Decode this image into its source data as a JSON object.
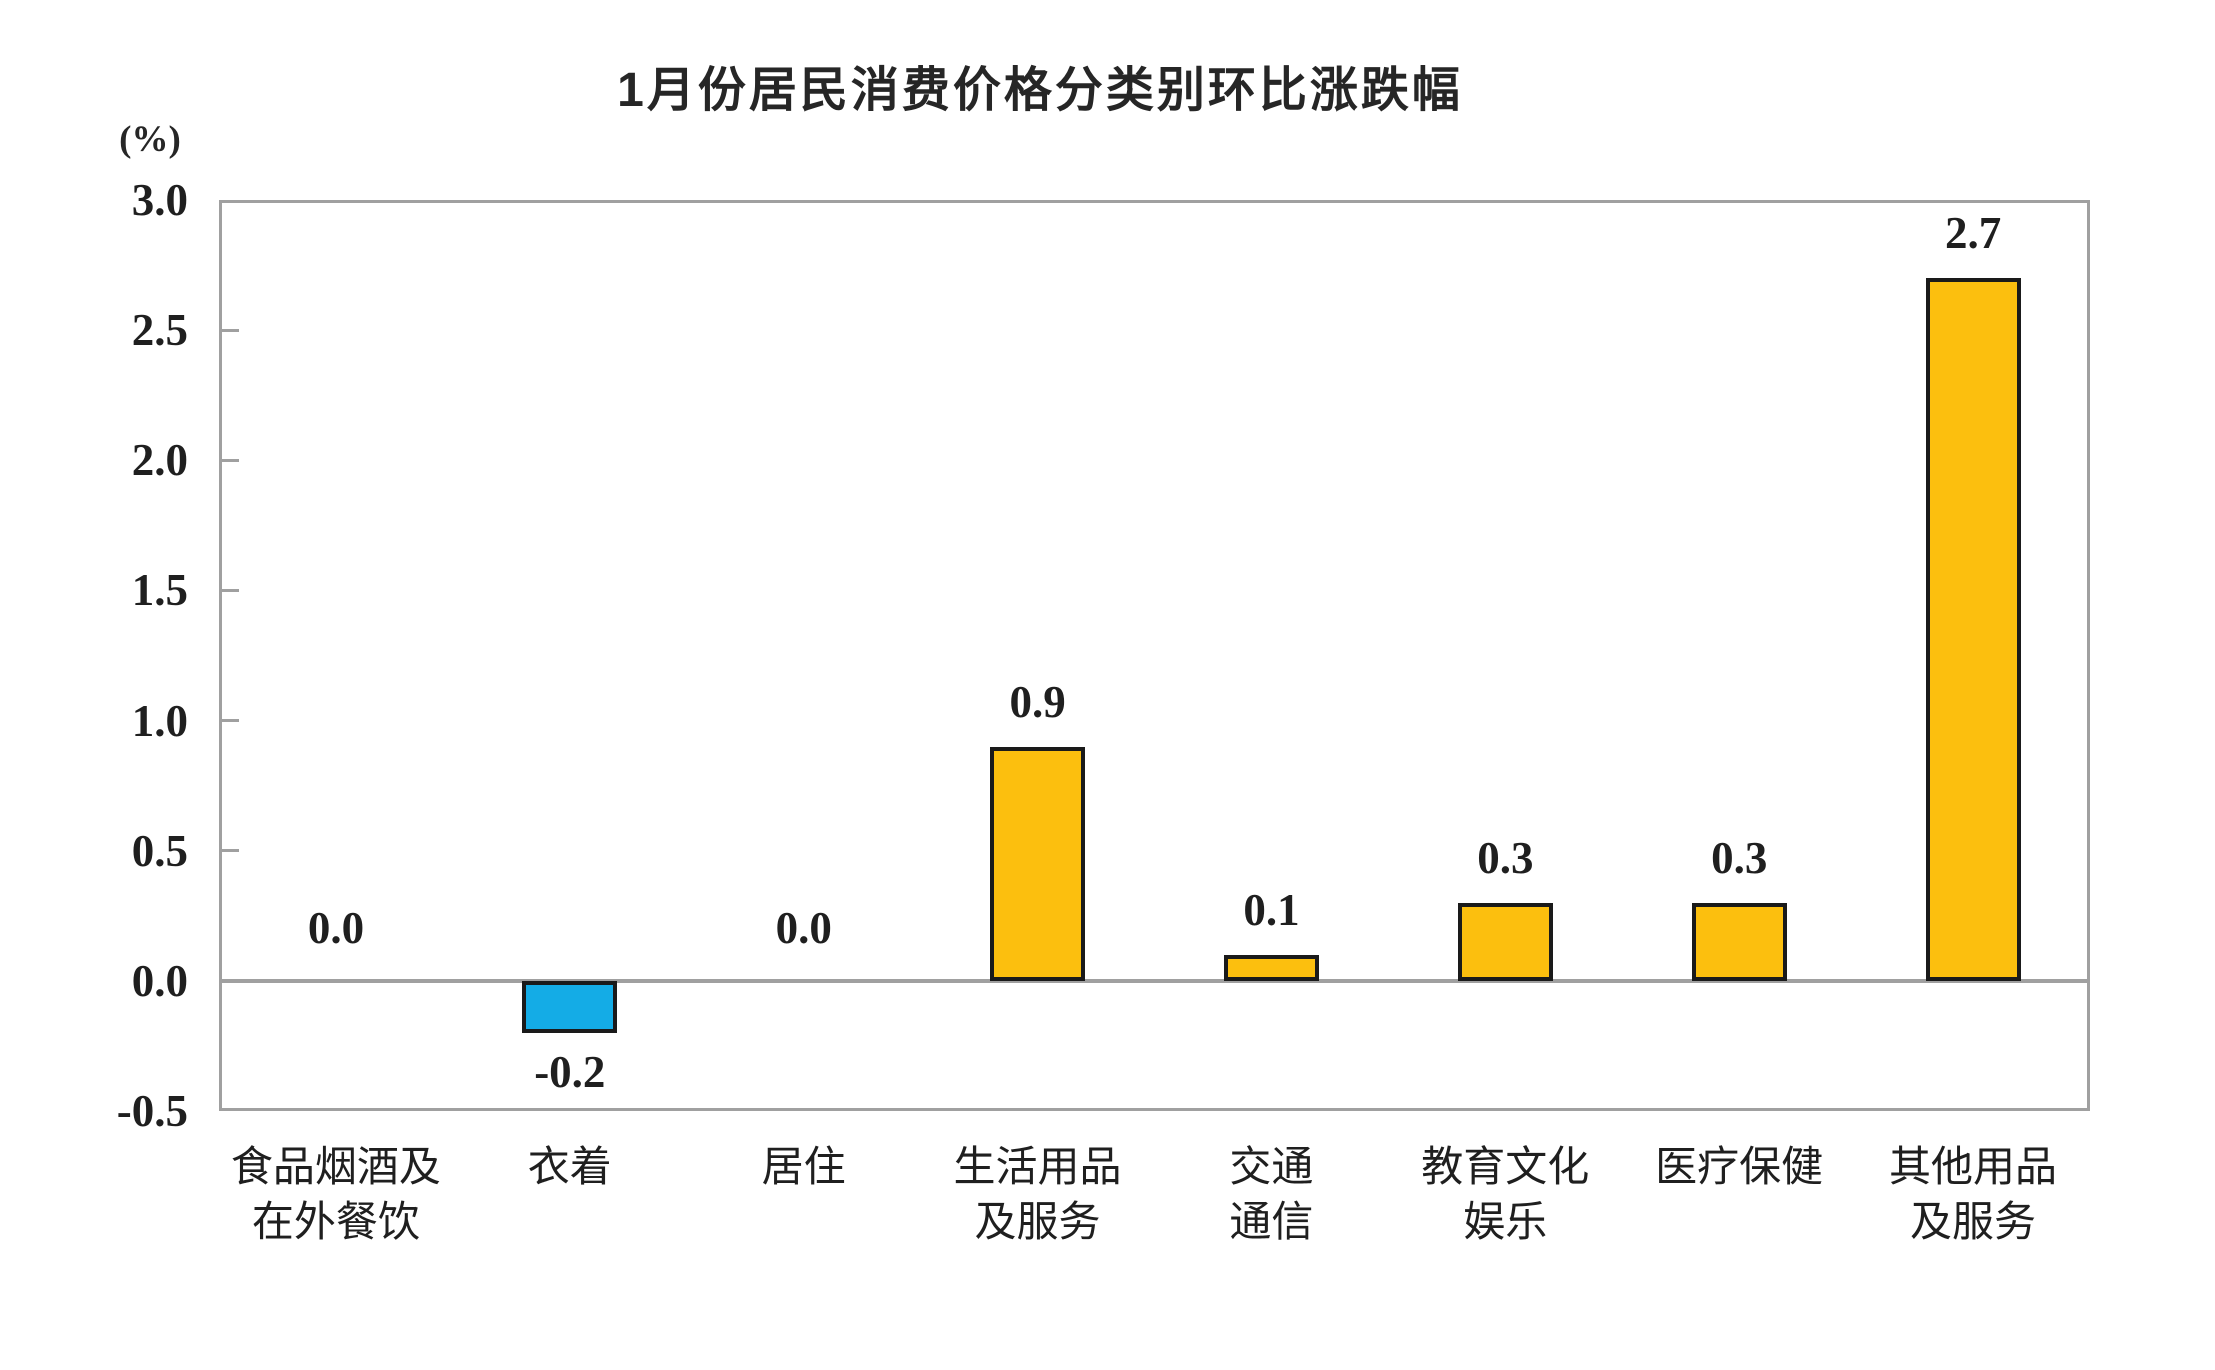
{
  "chart_data": {
    "type": "bar",
    "title": "1月份居民消费价格分类别环比涨跌幅",
    "unit_label": "(%)",
    "categories": [
      [
        "食品烟酒及",
        "在外餐饮"
      ],
      [
        "衣着"
      ],
      [
        "居住"
      ],
      [
        "生活用品",
        "及服务"
      ],
      [
        "交通",
        "通信"
      ],
      [
        "教育文化",
        "娱乐"
      ],
      [
        "医疗保健"
      ],
      [
        "其他用品",
        "及服务"
      ]
    ],
    "values": [
      0.0,
      -0.2,
      0.0,
      0.9,
      0.1,
      0.3,
      0.3,
      2.7
    ],
    "value_labels": [
      "0.0",
      "-0.2",
      "0.0",
      "0.9",
      "0.1",
      "0.3",
      "0.3",
      "2.7"
    ],
    "ylabel": "(%)",
    "xlabel": "",
    "ylim": [
      -0.5,
      3.0
    ],
    "ytick_labels": [
      "3.0",
      "2.5",
      "2.0",
      "1.5",
      "1.0",
      "0.5",
      "0.0",
      "-0.5"
    ],
    "grid": "off",
    "legend": "none",
    "colors": {
      "positive_bar": "#FCBF0E",
      "negative_bar": "#14ACE6",
      "bar_border": "#1A1A1A",
      "axis_frame": "#A0A0A0",
      "text": "#1F1F1F",
      "background": "#FFFFFF"
    }
  }
}
